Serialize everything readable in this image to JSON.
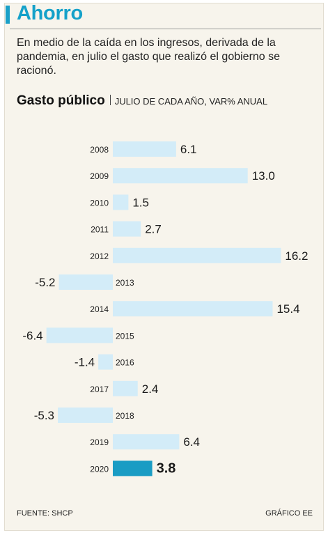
{
  "header": {
    "title": "Ahorro",
    "description": "En medio de la caída en los ingresos, derivada de la pandemia, en julio el gasto que realizó el gobierno se racionó."
  },
  "colors": {
    "accent": "#14a1c9",
    "bar_default": "#d3ecf8",
    "bar_highlight": "#1a9cc4"
  },
  "chart_data": {
    "type": "bar",
    "orientation": "horizontal",
    "title": "Gasto público",
    "subtitle": "JULIO DE CADA AÑO, VAR% ANUAL",
    "categories": [
      "2008",
      "2009",
      "2010",
      "2011",
      "2012",
      "2013",
      "2014",
      "2015",
      "2016",
      "2017",
      "2018",
      "2019",
      "2020"
    ],
    "values": [
      6.1,
      13.0,
      1.5,
      2.7,
      16.2,
      -5.2,
      15.4,
      -6.4,
      -1.4,
      2.4,
      -5.3,
      6.4,
      3.8
    ],
    "value_labels": [
      "6.1",
      "13.0",
      "1.5",
      "2.7",
      "16.2",
      "-5.2",
      "15.4",
      "-6.4",
      "-1.4",
      "2.4",
      "-5.3",
      "6.4",
      "3.8"
    ],
    "highlight": "2020",
    "xlim": [
      -6.4,
      16.2
    ],
    "grid": false,
    "legend": "none"
  },
  "footer": {
    "source": "FUENTE:  SHCP",
    "credit": "GRÁFICO EE"
  }
}
